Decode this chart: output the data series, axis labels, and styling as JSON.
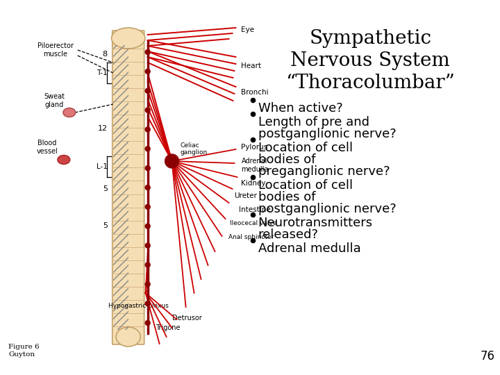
{
  "title_line1": "Sympathetic",
  "title_line2": "Nervous System",
  "title_line3": "“Thoracolumbar”",
  "bullet_points": [
    "•When active?",
    "•Length of pre and\n  postganglionic nerve?",
    "•Location of cell\n  bodies of\n  preganglionic nerve?",
    "•Location of cell\n  bodies of\n  postganglionic nerve?",
    "•Neurotransmitters\n  released?",
    "•Adrenal medulla"
  ],
  "page_number": "76",
  "figure_label": "Figure 6\nGuyton",
  "background_color": "#ffffff",
  "title_fontsize": 20,
  "bullet_fontsize": 13,
  "title_font": "serif",
  "bullet_font": "sans-serif",
  "diagram_bg": "#ffffff",
  "spine_color": "#f5deb3",
  "spine_edge": "#c4a26b",
  "nerve_color": "#cc0000",
  "chain_color": "#8b0000"
}
